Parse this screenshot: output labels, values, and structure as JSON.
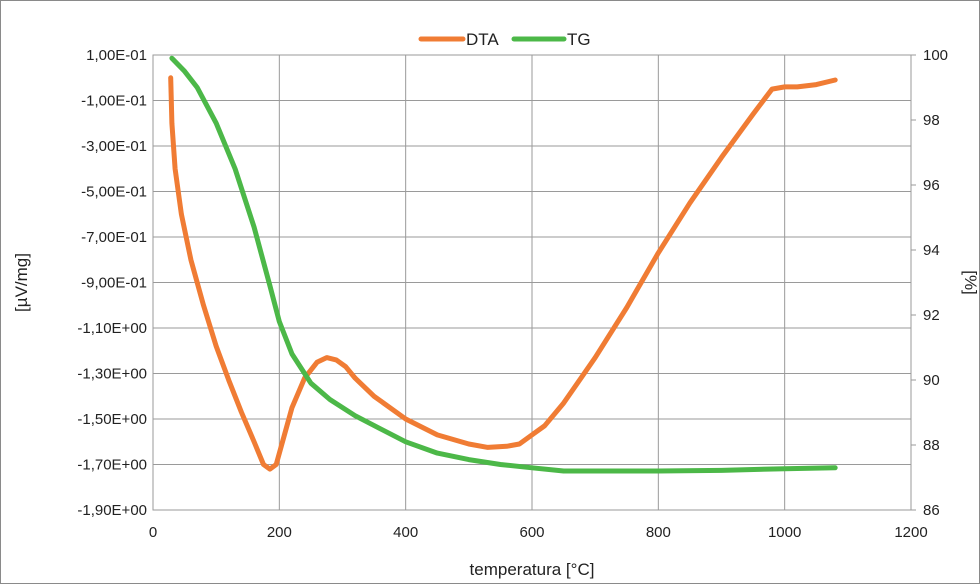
{
  "chart_data": {
    "type": "line",
    "title": "",
    "xlabel": "temperatura [°C]",
    "ylabel_left": "[µV/mg]",
    "ylabel_right": "[%]",
    "xlim": [
      0,
      1200
    ],
    "ylim_left": [
      -1.9,
      0.1
    ],
    "ylim_right": [
      86,
      100
    ],
    "grid": true,
    "legend_position": "top-center",
    "x_ticks": [
      "0",
      "200",
      "400",
      "600",
      "800",
      "1000",
      "1200"
    ],
    "y_left_ticks": [
      "1,00E-01",
      "-1,00E-01",
      "-3,00E-01",
      "-5,00E-01",
      "-7,00E-01",
      "-9,00E-01",
      "-1,10E+00",
      "-1,30E+00",
      "-1,50E+00",
      "-1,70E+00",
      "-1,90E+00"
    ],
    "y_right_ticks": [
      "100",
      "98",
      "96",
      "94",
      "92",
      "90",
      "88",
      "86"
    ],
    "series": [
      {
        "name": "DTA",
        "axis": "left",
        "color": "#f07c34",
        "x": [
          28,
          30,
          35,
          45,
          60,
          80,
          100,
          120,
          140,
          160,
          175,
          185,
          195,
          205,
          220,
          240,
          260,
          275,
          290,
          305,
          320,
          350,
          400,
          450,
          500,
          530,
          560,
          580,
          600,
          620,
          650,
          700,
          750,
          800,
          850,
          900,
          950,
          980,
          1000,
          1020,
          1050,
          1080
        ],
        "y": [
          0.0,
          -0.2,
          -0.4,
          -0.6,
          -0.8,
          -1.0,
          -1.18,
          -1.33,
          -1.47,
          -1.6,
          -1.7,
          -1.72,
          -1.7,
          -1.6,
          -1.45,
          -1.32,
          -1.25,
          -1.23,
          -1.24,
          -1.27,
          -1.32,
          -1.4,
          -1.5,
          -1.57,
          -1.61,
          -1.625,
          -1.62,
          -1.61,
          -1.57,
          -1.53,
          -1.43,
          -1.23,
          -1.01,
          -0.77,
          -0.55,
          -0.35,
          -0.16,
          -0.05,
          -0.04,
          -0.04,
          -0.03,
          -0.01
        ]
      },
      {
        "name": "TG",
        "axis": "right",
        "color": "#4cb848",
        "x": [
          30,
          50,
          70,
          100,
          130,
          160,
          185,
          200,
          220,
          250,
          280,
          320,
          360,
          400,
          450,
          500,
          550,
          600,
          650,
          700,
          800,
          900,
          1000,
          1080
        ],
        "y": [
          99.9,
          99.5,
          99.0,
          97.9,
          96.5,
          94.7,
          92.9,
          91.8,
          90.8,
          89.9,
          89.4,
          88.9,
          88.5,
          88.1,
          87.75,
          87.55,
          87.4,
          87.3,
          87.2,
          87.2,
          87.2,
          87.22,
          87.27,
          87.3
        ]
      }
    ]
  }
}
